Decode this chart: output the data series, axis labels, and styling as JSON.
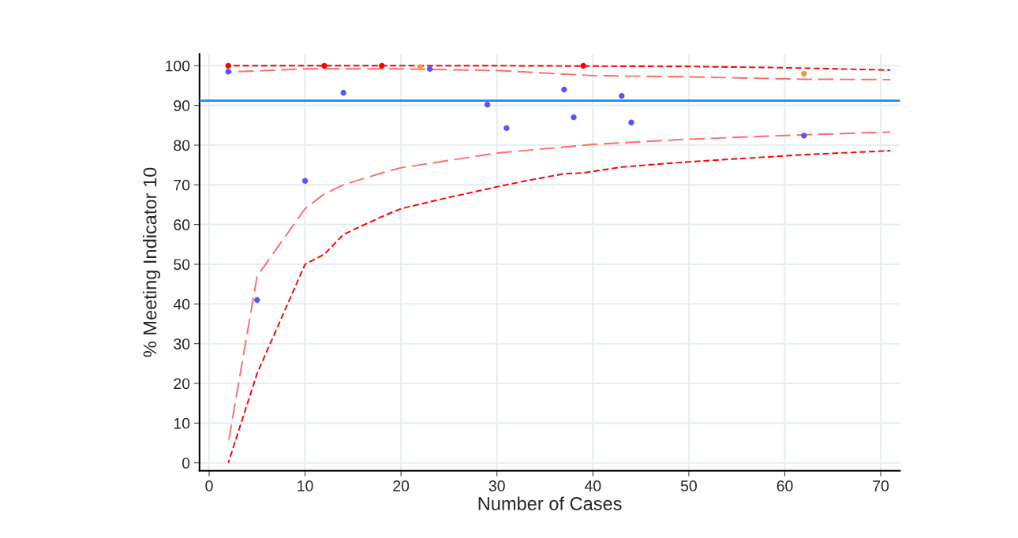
{
  "chart_data": {
    "type": "scatter",
    "xlabel": "Number of Cases",
    "ylabel": "% Meeting Indicator 10",
    "xlim": [
      -1,
      72
    ],
    "xticks": [
      0,
      10,
      20,
      30,
      40,
      50,
      60,
      70
    ],
    "ylim": [
      -2,
      103
    ],
    "yticks": [
      0,
      10,
      20,
      30,
      40,
      50,
      60,
      70,
      80,
      90,
      100
    ],
    "grid": true,
    "legend": false,
    "marker": "circle",
    "ref_lines": [
      {
        "axis": "y",
        "value": 91.2,
        "color": "#1e88f0",
        "line_style": "solid"
      }
    ],
    "series": [
      {
        "type": "line",
        "marker": "none",
        "color": "#ff0000",
        "line_style": "dashed",
        "x": [
          2,
          10,
          20,
          30,
          40,
          50,
          60,
          71
        ],
        "values": [
          100,
          100,
          100,
          100,
          99.9,
          99.8,
          99.5,
          98.9
        ]
      },
      {
        "type": "line",
        "marker": "none",
        "color": "#ff6b6b",
        "line_style": "dashed",
        "x": [
          2,
          10,
          20,
          30,
          40,
          50,
          62,
          71
        ],
        "values": [
          98.4,
          99.2,
          99.2,
          98.8,
          97.5,
          97.2,
          96.6,
          96.5
        ]
      },
      {
        "type": "line",
        "marker": "none",
        "color": "#ff6b6b",
        "line_style": "dashed",
        "x": [
          2,
          5,
          10,
          12,
          14,
          18,
          20,
          30,
          40,
          50,
          62,
          71
        ],
        "values": [
          5,
          47,
          64,
          67.7,
          70,
          73,
          74.3,
          78,
          80.2,
          81.5,
          82.6,
          83.3
        ]
      },
      {
        "type": "line",
        "marker": "none",
        "color": "#ff0000",
        "line_style": "dashed",
        "x": [
          2,
          5,
          10,
          12,
          14,
          18,
          20,
          24,
          30,
          33,
          37,
          39,
          43,
          50,
          62,
          71
        ],
        "values": [
          0,
          22.5,
          50,
          52.5,
          57.5,
          62,
          64,
          66.3,
          69.5,
          71,
          72.8,
          73,
          74.5,
          75.8,
          77.6,
          78.6
        ]
      },
      {
        "color": "#5555ff",
        "x": [
          2,
          5,
          10,
          14,
          23,
          29,
          31,
          37,
          38,
          43,
          44,
          62
        ],
        "values": [
          98.5,
          41,
          71,
          93.2,
          99.2,
          90.2,
          84.3,
          94,
          87,
          92.4,
          85.7,
          82.4
        ]
      },
      {
        "color": "#ff0000",
        "x": [
          2,
          12,
          18,
          39
        ],
        "values": [
          100,
          100,
          100,
          100
        ]
      },
      {
        "color": "#f59640",
        "x": [
          22,
          62
        ],
        "values": [
          99.7,
          98
        ]
      }
    ]
  }
}
